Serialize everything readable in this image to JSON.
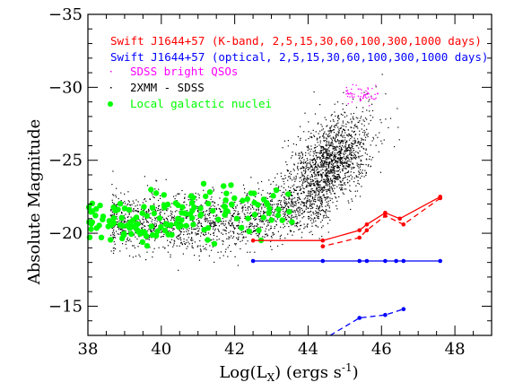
{
  "chart_data": {
    "type": "scatter",
    "xlabel": "Log(L",
    "xlabel_sub": "X",
    "xlabel_units": ") (ergs s",
    "xlabel_sup": "-1",
    "xlabel_end": ")",
    "ylabel": "Absolute Magnitude",
    "xlim": [
      38,
      49
    ],
    "ylim": [
      -13,
      -35
    ],
    "y_inverted": true,
    "x_ticks": [
      38,
      40,
      42,
      44,
      46,
      48
    ],
    "y_ticks": [
      -15,
      -20,
      -25,
      -30,
      -35
    ],
    "y_tick_labels": [
      "−15",
      "−20",
      "−25",
      "−30",
      "−35"
    ],
    "legend": [
      {
        "text": "Swift J1644+57 (K-band, 2,5,15,30,60,100,300,1000 days)",
        "color": "#ff0000"
      },
      {
        "text": "Swift J1644+57 (optical, 2,5,15,30,60,100,300,1000 days)",
        "color": "#0000ff"
      },
      {
        "text": "SDSS bright QSOs",
        "color": "#ff00ff"
      },
      {
        "text": "2XMM - SDSS",
        "color": "#000000"
      },
      {
        "text": "Local galactic nuclei",
        "color": "#00ff00"
      }
    ],
    "series": [
      {
        "name": "Swift J1644+57 (K-band, 2,5,15,30,60,100,300,1000 days)",
        "color": "#ff0000",
        "style": "solid",
        "points": [
          [
            47.6,
            -22.5
          ],
          [
            46.5,
            -21.0
          ],
          [
            46.1,
            -21.4
          ],
          [
            45.6,
            -20.6
          ],
          [
            45.4,
            -20.2
          ],
          [
            44.4,
            -19.5
          ],
          [
            42.5,
            -19.5
          ]
        ]
      },
      {
        "name": "Swift J1644+57 (K-band, 2,5,15,30,60,100,300,1000 days)",
        "color": "#ff0000",
        "style": "dashed",
        "points": [
          [
            47.6,
            -22.4
          ],
          [
            46.6,
            -20.6
          ],
          [
            46.1,
            -21.2
          ],
          [
            45.6,
            -20.2
          ],
          [
            45.4,
            -19.7
          ],
          [
            44.4,
            -19.1
          ]
        ]
      },
      {
        "name": "Swift J1644+57 (optical, 2,5,15,30,60,100,300,1000 days)",
        "color": "#0000ff",
        "style": "solid",
        "points": [
          [
            42.5,
            -18.1
          ],
          [
            44.4,
            -18.1
          ],
          [
            45.4,
            -18.1
          ],
          [
            45.6,
            -18.1
          ],
          [
            46.1,
            -18.1
          ],
          [
            46.4,
            -18.1
          ],
          [
            46.6,
            -18.1
          ],
          [
            47.6,
            -18.1
          ]
        ]
      },
      {
        "name": "Swift J1644+57 (optical, 2,5,15,30,60,100,300,1000 days)",
        "color": "#0000ff",
        "style": "dashed",
        "points": [
          [
            44.6,
            -13.0
          ],
          [
            45.4,
            -14.2
          ],
          [
            46.1,
            -14.4
          ],
          [
            46.6,
            -14.8
          ]
        ]
      }
    ],
    "scatter_groups": [
      {
        "name": "SDSS bright QSOs",
        "color": "#ff00ff",
        "count": 60,
        "x_range": [
          45.0,
          45.9
        ],
        "y_center": -29.6,
        "y_spread": 0.9
      },
      {
        "name": "2XMM - SDSS",
        "color": "#000000",
        "count": 3200,
        "x_range": [
          38.6,
          47.2
        ]
      },
      {
        "name": "Local galactic nuclei",
        "color": "#00ff00",
        "count": 150,
        "x_range": [
          38.0,
          43.6
        ],
        "y_center": -20.8,
        "y_spread": 1.6
      }
    ],
    "grid": false
  }
}
